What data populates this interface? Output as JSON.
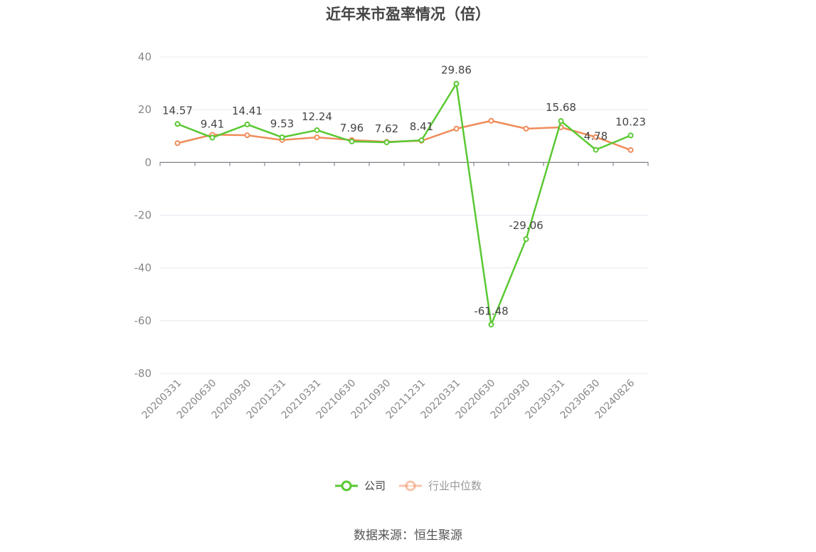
{
  "title": "近年来市盈率情况（倍）",
  "source": "数据来源：恒生聚源",
  "chart_data": {
    "type": "line",
    "title": "近年来市盈率情况（倍）",
    "categories": [
      "20200331",
      "20200630",
      "20200930",
      "20201231",
      "20210331",
      "20210630",
      "20210930",
      "20211231",
      "20220331",
      "20220630",
      "20220930",
      "20230331",
      "20230630",
      "20240826"
    ],
    "series": [
      {
        "name": "公司",
        "color": "#5ac833",
        "values": [
          14.57,
          9.41,
          14.41,
          9.53,
          12.24,
          7.96,
          7.62,
          8.41,
          29.86,
          -61.48,
          -29.06,
          15.68,
          4.78,
          10.23
        ],
        "labels": [
          "14.57",
          "9.41",
          "14.41",
          "9.53",
          "12.24",
          "7.96",
          "7.62",
          "8.41",
          "29.86",
          "-61.48",
          "-29.06",
          "15.68",
          "4.78",
          "10.23"
        ]
      },
      {
        "name": "行业中位数",
        "color": "#f08c5a",
        "values": [
          7.3,
          10.5,
          10.3,
          8.5,
          9.5,
          8.5,
          7.8,
          8.2,
          12.8,
          15.8,
          12.8,
          13.3,
          9.6,
          4.7
        ]
      }
    ],
    "yticks": [
      "40",
      "20",
      "0",
      "-20",
      "-40",
      "-60",
      "-80"
    ],
    "ylim": [
      -80,
      40
    ],
    "grid": true,
    "legend_position": "bottom",
    "xlabel": "",
    "ylabel": ""
  }
}
